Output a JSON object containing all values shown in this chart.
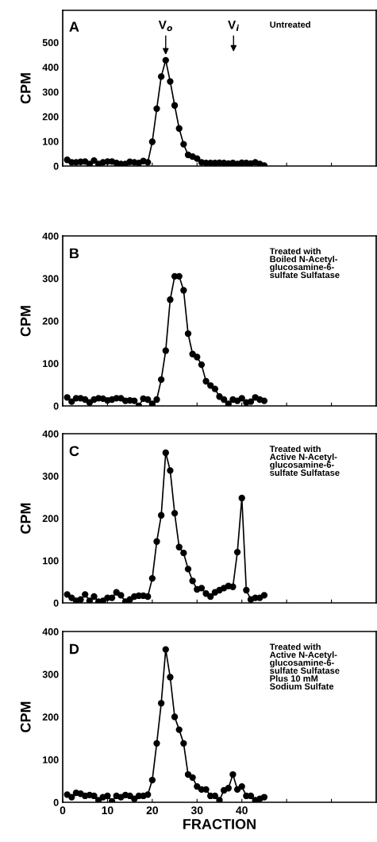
{
  "chart_data": [
    {
      "type": "line",
      "ylabel": "CPM",
      "marker": "circle",
      "line_style": "solid",
      "grid": false,
      "tick_labels": "y",
      "xlim": [
        0,
        70
      ],
      "xticks": [
        0,
        10,
        20,
        30,
        40,
        50,
        60
      ],
      "ylim": [
        0,
        630
      ],
      "yticks": [
        0,
        100,
        200,
        300,
        400,
        500
      ],
      "x": [
        1,
        2,
        3,
        4,
        5,
        6,
        7,
        8,
        9,
        10,
        11,
        12,
        13,
        14,
        15,
        16,
        17,
        18,
        19,
        20,
        21,
        22,
        23,
        24,
        25,
        26,
        27,
        28,
        29,
        30,
        31,
        32,
        33,
        34,
        35,
        36,
        37,
        38,
        39,
        40,
        41,
        42,
        43,
        44,
        45
      ],
      "series": [
        {
          "color": "#000000",
          "values": [
            25,
            15,
            15,
            17,
            18,
            8,
            22,
            8,
            15,
            18,
            18,
            12,
            8,
            8,
            17,
            15,
            12,
            20,
            15,
            98,
            232,
            362,
            428,
            342,
            245,
            152,
            88,
            45,
            38,
            30,
            15,
            12,
            12,
            12,
            13,
            12,
            10,
            12,
            8,
            13,
            12,
            10,
            15,
            8,
            2
          ]
        }
      ],
      "annotations": [
        "A",
        "Untreated",
        {
          "text": "V$_{o}$",
          "x": 23,
          "y": 428
        },
        "V$_{i}$"
      ]
    },
    {
      "type": "line",
      "ylabel": "CPM",
      "marker": "circle",
      "line_style": "solid",
      "grid": false,
      "tick_labels": "y",
      "xlim": [
        0,
        70
      ],
      "xticks": [
        0,
        10,
        20,
        30,
        40,
        50,
        60
      ],
      "ylim": [
        0,
        400
      ],
      "yticks": [
        0,
        100,
        200,
        300,
        400
      ],
      "x": [
        1,
        2,
        3,
        4,
        5,
        6,
        7,
        8,
        9,
        10,
        11,
        12,
        13,
        14,
        15,
        16,
        17,
        18,
        19,
        20,
        21,
        22,
        23,
        24,
        25,
        26,
        27,
        28,
        29,
        30,
        31,
        32,
        33,
        34,
        35,
        36,
        37,
        38,
        39,
        40,
        41,
        42,
        43,
        44,
        45
      ],
      "series": [
        {
          "color": "#000000",
          "values": [
            20,
            10,
            18,
            18,
            15,
            8,
            15,
            18,
            17,
            13,
            15,
            18,
            18,
            12,
            13,
            12,
            0,
            17,
            15,
            5,
            15,
            62,
            130,
            250,
            305,
            305,
            272,
            170,
            122,
            115,
            97,
            58,
            48,
            40,
            22,
            15,
            5,
            15,
            12,
            18,
            8,
            10,
            20,
            15,
            12
          ]
        }
      ],
      "annotations": [
        "B",
        "Treated with\nBoiled N-Acetyl-\nglucosamine-6-\nsulfate Sulfatase"
      ]
    },
    {
      "type": "line",
      "ylabel": "CPM",
      "marker": "circle",
      "line_style": "solid",
      "grid": false,
      "tick_labels": "y",
      "xlim": [
        0,
        70
      ],
      "xticks": [
        0,
        10,
        20,
        30,
        40,
        50,
        60
      ],
      "ylim": [
        0,
        400
      ],
      "yticks": [
        0,
        100,
        200,
        300,
        400
      ],
      "x": [
        1,
        2,
        3,
        4,
        5,
        6,
        7,
        8,
        9,
        10,
        11,
        12,
        13,
        14,
        15,
        16,
        17,
        18,
        19,
        20,
        21,
        22,
        23,
        24,
        25,
        26,
        27,
        28,
        29,
        30,
        31,
        32,
        33,
        34,
        35,
        36,
        37,
        38,
        39,
        40,
        41,
        42,
        43,
        44,
        45
      ],
      "series": [
        {
          "color": "#000000",
          "values": [
            20,
            12,
            5,
            8,
            20,
            5,
            15,
            3,
            5,
            12,
            12,
            25,
            18,
            3,
            8,
            15,
            17,
            17,
            15,
            58,
            145,
            207,
            355,
            313,
            212,
            132,
            118,
            80,
            52,
            32,
            35,
            22,
            15,
            25,
            30,
            35,
            40,
            38,
            120,
            248,
            30,
            8,
            12,
            12,
            18
          ]
        }
      ],
      "annotations": [
        "C",
        "Treated with\nActive N-Acetyl-\nglucosamine-6-\nsulfate Sulfatase"
      ]
    },
    {
      "type": "line",
      "xlabel": "FRACTION",
      "ylabel": "CPM",
      "marker": "circle",
      "line_style": "solid",
      "grid": false,
      "xlim": [
        0,
        70
      ],
      "xticks": [
        0,
        10,
        20,
        30,
        40,
        {
          "value": 50,
          "label": null
        },
        {
          "value": 60,
          "label": null
        }
      ],
      "ylim": [
        0,
        400
      ],
      "yticks": [
        0,
        100,
        200,
        300,
        400
      ],
      "x": [
        1,
        2,
        3,
        4,
        5,
        6,
        7,
        8,
        9,
        10,
        11,
        12,
        13,
        14,
        15,
        16,
        17,
        18,
        19,
        20,
        21,
        22,
        23,
        24,
        25,
        26,
        27,
        28,
        29,
        30,
        31,
        32,
        33,
        34,
        35,
        36,
        37,
        38,
        39,
        40,
        41,
        42,
        43,
        44,
        45
      ],
      "series": [
        {
          "color": "#000000",
          "values": [
            18,
            12,
            22,
            20,
            15,
            17,
            15,
            5,
            12,
            15,
            2,
            15,
            12,
            17,
            15,
            8,
            15,
            15,
            18,
            52,
            138,
            232,
            358,
            293,
            200,
            170,
            138,
            65,
            58,
            37,
            30,
            30,
            15,
            15,
            5,
            28,
            33,
            65,
            30,
            37,
            15,
            15,
            5,
            8,
            12
          ]
        }
      ],
      "annotations": [
        "D",
        "Treated with\nActive N-Acetyl-\nglucosamine-6-\nsulfate Sulfatase\nPlus 10 mM\nSodium Sulfate"
      ]
    }
  ]
}
